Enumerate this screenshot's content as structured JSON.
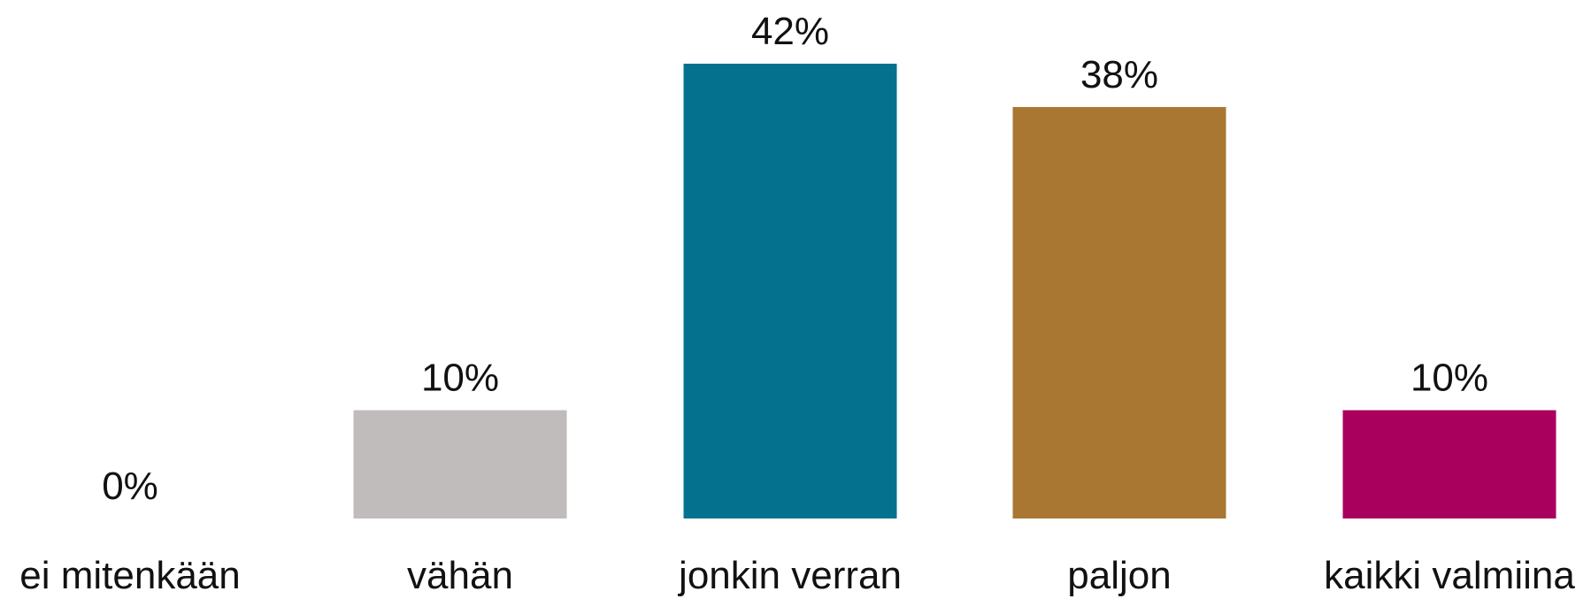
{
  "chart_data": {
    "type": "bar",
    "categories": [
      "ei mitenkään",
      "vähän",
      "jonkin verran",
      "paljon",
      "kaikki valmiina"
    ],
    "values": [
      0,
      10,
      42,
      38,
      10
    ],
    "value_labels": [
      "0%",
      "10%",
      "42%",
      "38%",
      "10%"
    ],
    "unit": "%",
    "colors": [
      "#c0bcbb",
      "#c0bcbb",
      "#04728f",
      "#a97731",
      "#a8005c"
    ],
    "title": "",
    "xlabel": "",
    "ylabel": "",
    "ylim": [
      0,
      42
    ],
    "grid": false,
    "legend": "none"
  }
}
